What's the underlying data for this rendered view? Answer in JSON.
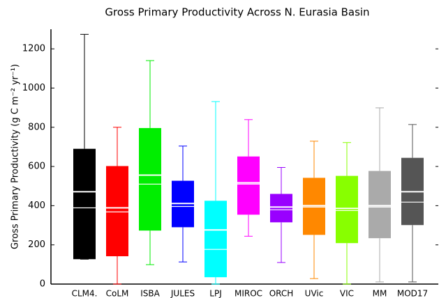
{
  "chart_data": {
    "type": "box",
    "title": "Gross Primary Productivity Across N. Eurasia Basin",
    "ylabel": "Gross Primary Productivity (g C m⁻² yr⁻¹)",
    "categories": [
      "CLM4.",
      "CoLM",
      "ISBA",
      "JULES",
      "LPJ",
      "MIROC",
      "ORCH",
      "UVic",
      "VIC",
      "MM",
      "MOD17"
    ],
    "colors": [
      "#000000",
      "#ff0000",
      "#00ee00",
      "#0000ff",
      "#00ffff",
      "#ff00ff",
      "#9900ff",
      "#ff8800",
      "#88ff00",
      "#aaaaaa",
      "#555555"
    ],
    "min": [
      127,
      0,
      99,
      113,
      0,
      244,
      110,
      28,
      0,
      11,
      11
    ],
    "q1": [
      127,
      142,
      273,
      290,
      35,
      354,
      315,
      251,
      209,
      234,
      301
    ],
    "median": [
      389,
      368,
      510,
      396,
      177,
      510,
      379,
      393,
      375,
      393,
      418
    ],
    "mean": [
      471,
      389,
      556,
      411,
      276,
      517,
      393,
      400,
      386,
      400,
      471
    ],
    "q3": [
      690,
      602,
      796,
      527,
      425,
      651,
      460,
      542,
      552,
      577,
      644
    ],
    "max": [
      1274,
      800,
      1140,
      704,
      931,
      839,
      595,
      729,
      722,
      899,
      814
    ],
    "ylim": [
      0,
      1300
    ],
    "yticks": [
      0,
      200,
      400,
      600,
      800,
      1000,
      1200
    ]
  }
}
